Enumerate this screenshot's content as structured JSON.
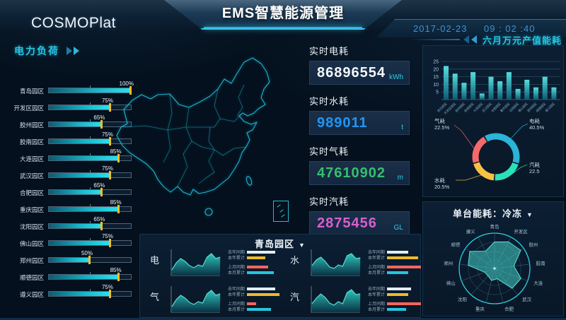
{
  "colors": {
    "accent": "#29c9e8",
    "page_bg": "#04101d",
    "panel_bg": "#0a1c30",
    "bar_marker": "#f0c029"
  },
  "header": {
    "logo": "COSMOPlat",
    "title": "EMS智慧能源管理",
    "date": "2017-02-23",
    "time": "09 : 02 :40"
  },
  "icons": {
    "dropdown_caret": "▼"
  },
  "power_load": {
    "title": "电力负荷",
    "items": [
      {
        "label": "青岛园区",
        "value": 100
      },
      {
        "label": "开发区园区",
        "value": 75
      },
      {
        "label": "胶州园区",
        "value": 65
      },
      {
        "label": "胶南园区",
        "value": 75
      },
      {
        "label": "大连园区",
        "value": 85
      },
      {
        "label": "武汉园区",
        "value": 75
      },
      {
        "label": "合肥园区",
        "value": 65
      },
      {
        "label": "重庆园区",
        "value": 85
      },
      {
        "label": "沈阳园区",
        "value": 65
      },
      {
        "label": "佛山园区",
        "value": 75
      },
      {
        "label": "郑州园区",
        "value": 50
      },
      {
        "label": "顺德园区",
        "value": 85
      },
      {
        "label": "遵义园区",
        "value": 75
      }
    ]
  },
  "metrics": [
    {
      "label": "实时电耗",
      "value": "86896554",
      "unit": "kWh",
      "color": "#f4f8fb"
    },
    {
      "label": "实时水耗",
      "value": "989011",
      "unit": "t",
      "color": "#2196f3"
    },
    {
      "label": "实时气耗",
      "value": "47610902",
      "unit": "m",
      "color": "#35c06c"
    },
    {
      "label": "实时汽耗",
      "value": "2875456",
      "unit": "GL",
      "color": "#d95fd0"
    }
  ],
  "output_energy": {
    "title": "六月万元产值能耗",
    "chart": {
      "type": "bar",
      "categories": [
        "青岛园区",
        "开发区园区",
        "胶州园区",
        "胶南园区",
        "大连园区",
        "武汉园区",
        "合肥园区",
        "重庆园区",
        "沈阳园区",
        "佛山园区",
        "郑州园区",
        "顺德园区",
        "遵义园区"
      ],
      "values": [
        22,
        17,
        11,
        18,
        4,
        15,
        12,
        18,
        7,
        13,
        8,
        15,
        8
      ],
      "yticks": [
        5,
        10,
        15,
        20,
        25
      ],
      "ylim": [
        0,
        25
      ]
    }
  },
  "energy_share": {
    "type": "pie",
    "slices": [
      {
        "label": "电耗",
        "text": "40.5%",
        "value": 40.5,
        "color": "#2bb3d8"
      },
      {
        "label": "汽耗",
        "text": "22.5",
        "value": 22.5,
        "color": "#2de0ba"
      },
      {
        "label": "水耗",
        "text": "20.5%",
        "value": 20.5,
        "color": "#f7c244"
      },
      {
        "label": "气耗",
        "text": "22.5%",
        "value": 22.5,
        "color": "#f5696a"
      }
    ]
  },
  "unit_energy": {
    "title": "单台能耗：冷冻",
    "chart": {
      "type": "radar",
      "categories": [
        "青岛",
        "开发区",
        "胶州",
        "胶南",
        "大连",
        "武汉",
        "合肥",
        "重庆",
        "沈阳",
        "佛山",
        "郑州",
        "顺德",
        "遵义"
      ],
      "values": [
        75,
        85,
        90,
        55,
        80,
        75,
        30,
        35,
        28,
        30,
        75,
        85,
        55
      ],
      "rmax": 100
    }
  },
  "park_trends": {
    "title": "青岛园区",
    "legend": [
      "去年同期",
      "本年累计",
      "上月同期",
      "本月累计"
    ],
    "legend_colors": [
      "#e4edf2",
      "#f0b929",
      "#f5655e",
      "#27c5dc"
    ],
    "charts": [
      {
        "label": "电",
        "legend_values": [
          40,
          26,
          30,
          38
        ],
        "area": [
          8,
          18,
          24,
          20,
          14,
          11,
          15,
          13,
          26,
          31,
          24,
          26
        ]
      },
      {
        "label": "水",
        "legend_values": [
          30,
          44,
          48,
          30
        ],
        "area": [
          14,
          22,
          26,
          20,
          12,
          10,
          15,
          13,
          28,
          31,
          24,
          25
        ]
      },
      {
        "label": "气",
        "legend_values": [
          40,
          46,
          13,
          34
        ],
        "area": [
          8,
          18,
          24,
          20,
          14,
          11,
          15,
          13,
          26,
          31,
          24,
          26
        ]
      },
      {
        "label": "汽",
        "legend_values": [
          34,
          30,
          48,
          27
        ],
        "area": [
          12,
          20,
          26,
          21,
          13,
          10,
          15,
          12,
          28,
          32,
          25,
          26
        ]
      }
    ]
  }
}
